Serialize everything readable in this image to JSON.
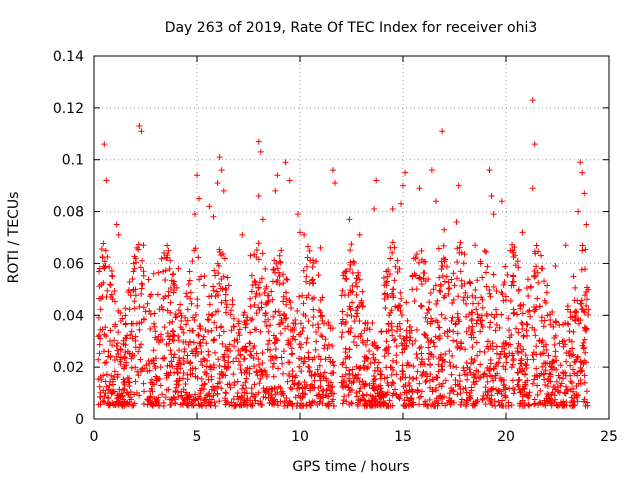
{
  "chart_data": {
    "type": "scatter",
    "title": "Day 263 of 2019, Rate Of TEC Index for receiver ohi3",
    "xlabel": "GPS time / hours",
    "ylabel": "ROTI / TECUs",
    "xlim": [
      0,
      25
    ],
    "ylim": [
      0,
      0.14
    ],
    "xticks": [
      0,
      5,
      10,
      15,
      20,
      25
    ],
    "xtick_labels": [
      "0",
      "5",
      "10",
      "15",
      "20",
      "25"
    ],
    "yticks": [
      0,
      0.02,
      0.04,
      0.06,
      0.08,
      0.1,
      0.12,
      0.14
    ],
    "ytick_labels": [
      "0",
      "0.02",
      "0.04",
      "0.06",
      "0.08",
      "0.1",
      "0.12",
      "0.14"
    ],
    "grid": true,
    "marker": "+",
    "color": "#ff0000",
    "series": [
      {
        "name": "ROTI",
        "points": [
          [
            0.5,
            0.106
          ],
          [
            0.6,
            0.092
          ],
          [
            1.1,
            0.075
          ],
          [
            1.2,
            0.071
          ],
          [
            0.9,
            0.055
          ],
          [
            0.3,
            0.031
          ],
          [
            2.2,
            0.113
          ],
          [
            2.3,
            0.111
          ],
          [
            2.4,
            0.067
          ],
          [
            2.9,
            0.056
          ],
          [
            3.4,
            0.064
          ],
          [
            3.1,
            0.048
          ],
          [
            4.1,
            0.058
          ],
          [
            4.6,
            0.052
          ],
          [
            3.7,
            0.041
          ],
          [
            4.9,
            0.079
          ],
          [
            5.0,
            0.094
          ],
          [
            5.1,
            0.085
          ],
          [
            5.6,
            0.082
          ],
          [
            5.8,
            0.078
          ],
          [
            6.0,
            0.091
          ],
          [
            6.1,
            0.101
          ],
          [
            6.2,
            0.096
          ],
          [
            6.3,
            0.088
          ],
          [
            7.2,
            0.071
          ],
          [
            7.6,
            0.063
          ],
          [
            8.0,
            0.107
          ],
          [
            8.1,
            0.103
          ],
          [
            8.0,
            0.086
          ],
          [
            8.2,
            0.077
          ],
          [
            8.8,
            0.088
          ],
          [
            8.9,
            0.094
          ],
          [
            9.3,
            0.099
          ],
          [
            9.5,
            0.092
          ],
          [
            10.0,
            0.072
          ],
          [
            10.2,
            0.071
          ],
          [
            9.9,
            0.079
          ],
          [
            11.0,
            0.066
          ],
          [
            11.6,
            0.096
          ],
          [
            11.7,
            0.091
          ],
          [
            12.4,
            0.077
          ],
          [
            12.9,
            0.071
          ],
          [
            13.7,
            0.092
          ],
          [
            13.6,
            0.081
          ],
          [
            14.5,
            0.081
          ],
          [
            15.1,
            0.095
          ],
          [
            15.0,
            0.09
          ],
          [
            14.9,
            0.083
          ],
          [
            15.8,
            0.089
          ],
          [
            16.4,
            0.096
          ],
          [
            16.6,
            0.084
          ],
          [
            16.9,
            0.111
          ],
          [
            17.0,
            0.073
          ],
          [
            17.6,
            0.076
          ],
          [
            17.7,
            0.09
          ],
          [
            18.5,
            0.067
          ],
          [
            19.2,
            0.096
          ],
          [
            19.3,
            0.086
          ],
          [
            19.4,
            0.079
          ],
          [
            19.8,
            0.084
          ],
          [
            20.3,
            0.065
          ],
          [
            20.8,
            0.072
          ],
          [
            21.3,
            0.123
          ],
          [
            21.4,
            0.106
          ],
          [
            21.3,
            0.089
          ],
          [
            21.7,
            0.063
          ],
          [
            22.4,
            0.059
          ],
          [
            22.9,
            0.067
          ],
          [
            23.5,
            0.08
          ],
          [
            23.6,
            0.099
          ],
          [
            23.7,
            0.095
          ],
          [
            23.8,
            0.087
          ],
          [
            23.9,
            0.075
          ],
          [
            23.7,
            0.065
          ]
        ],
        "density_note_hours": [
          0.2,
          24.0
        ],
        "typical_range": [
          0.005,
          0.06
        ]
      }
    ]
  }
}
